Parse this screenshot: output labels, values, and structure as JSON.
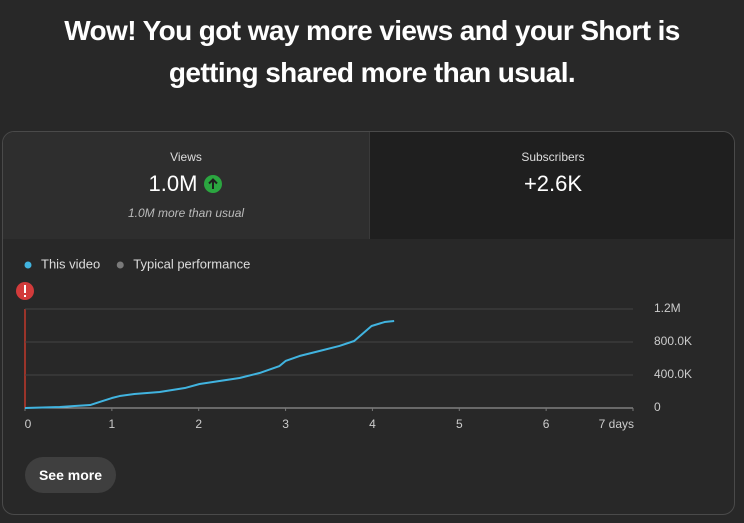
{
  "headline": "Wow! You got way more views and your Short is getting shared more than usual.",
  "cards": [
    {
      "label": "Views",
      "value": "1.0M",
      "note": "1.0M more than usual"
    },
    {
      "label": "Subscribers",
      "value": "+2.6K"
    }
  ],
  "chart_data": {
    "type": "line",
    "series": [
      {
        "name": "This video",
        "color": "#41b4e0",
        "x": [
          0,
          0.4,
          0.57,
          0.75,
          0.86,
          1.0,
          1.09,
          1.26,
          1.55,
          1.84,
          2.01,
          2.24,
          2.47,
          2.7,
          2.93,
          3.0,
          3.16,
          3.39,
          3.62,
          3.79,
          3.91,
          3.99,
          4.14,
          4.25
        ],
        "values": [
          0,
          12000,
          24000,
          36000,
          73000,
          121000,
          145000,
          170000,
          194000,
          242000,
          291000,
          327000,
          364000,
          424000,
          509000,
          570000,
          630000,
          691000,
          752000,
          812000,
          921000,
          994000,
          1042000,
          1055000
        ]
      },
      {
        "name": "Typical performance",
        "color": "#7a7a7a",
        "x": [],
        "values": []
      }
    ],
    "xlim": [
      0,
      7
    ],
    "xticks": [
      0,
      1,
      2,
      3,
      4,
      5,
      6,
      {
        "value": 7,
        "label": "7 days"
      }
    ],
    "ylim": [
      0,
      1200000
    ],
    "yticks": [
      0,
      {
        "value": 400000,
        "label": "400.0K"
      },
      {
        "value": 800000,
        "label": "800.0K"
      },
      {
        "value": 1200000,
        "label": "1.2M"
      }
    ],
    "grid": true
  },
  "button": "See more"
}
